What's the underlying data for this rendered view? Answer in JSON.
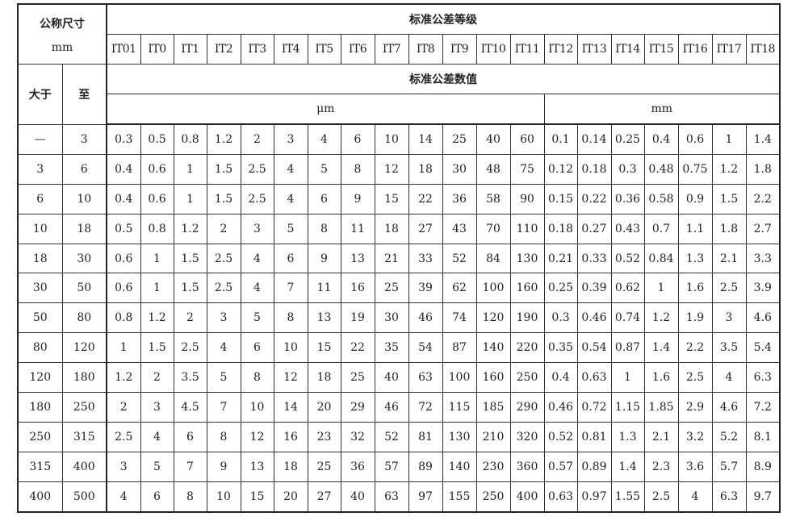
{
  "header": {
    "nominal_size": "公称尺寸",
    "nominal_unit": "mm",
    "grade_title": "标准公差等级",
    "over": "大于",
    "up_to": "至",
    "values_title": "标准公差数值",
    "unit_um": "μm",
    "unit_mm": "mm",
    "grades": [
      "IT01",
      "IT0",
      "IT1",
      "IT2",
      "IT3",
      "IT4",
      "IT5",
      "IT6",
      "IT7",
      "IT8",
      "IT9",
      "IT10",
      "IT11",
      "IT12",
      "IT13",
      "IT14",
      "IT15",
      "IT16",
      "IT17",
      "IT18"
    ]
  },
  "rows": [
    {
      "over": "—",
      "to": "3",
      "values": [
        "0.3",
        "0.5",
        "0.8",
        "1.2",
        "2",
        "3",
        "4",
        "6",
        "10",
        "14",
        "25",
        "40",
        "60",
        "0.1",
        "0.14",
        "0.25",
        "0.4",
        "0.6",
        "1",
        "1.4"
      ]
    },
    {
      "over": "3",
      "to": "6",
      "values": [
        "0.4",
        "0.6",
        "1",
        "1.5",
        "2.5",
        "4",
        "5",
        "8",
        "12",
        "18",
        "30",
        "48",
        "75",
        "0.12",
        "0.18",
        "0.3",
        "0.48",
        "0.75",
        "1.2",
        "1.8"
      ]
    },
    {
      "over": "6",
      "to": "10",
      "values": [
        "0.4",
        "0.6",
        "1",
        "1.5",
        "2.5",
        "4",
        "6",
        "9",
        "15",
        "22",
        "36",
        "58",
        "90",
        "0.15",
        "0.22",
        "0.36",
        "0.58",
        "0.9",
        "1.5",
        "2.2"
      ]
    },
    {
      "over": "10",
      "to": "18",
      "values": [
        "0.5",
        "0.8",
        "1.2",
        "2",
        "3",
        "5",
        "8",
        "11",
        "18",
        "27",
        "43",
        "70",
        "110",
        "0.18",
        "0.27",
        "0.43",
        "0.7",
        "1.1",
        "1.8",
        "2.7"
      ]
    },
    {
      "over": "18",
      "to": "30",
      "values": [
        "0.6",
        "1",
        "1.5",
        "2.5",
        "4",
        "6",
        "9",
        "13",
        "21",
        "33",
        "52",
        "84",
        "130",
        "0.21",
        "0.33",
        "0.52",
        "0.84",
        "1.3",
        "2.1",
        "3.3"
      ]
    },
    {
      "over": "30",
      "to": "50",
      "values": [
        "0.6",
        "1",
        "1.5",
        "2.5",
        "4",
        "7",
        "11",
        "16",
        "25",
        "39",
        "62",
        "100",
        "160",
        "0.25",
        "0.39",
        "0.62",
        "1",
        "1.6",
        "2.5",
        "3.9"
      ]
    },
    {
      "over": "50",
      "to": "80",
      "values": [
        "0.8",
        "1.2",
        "2",
        "3",
        "5",
        "8",
        "13",
        "19",
        "30",
        "46",
        "74",
        "120",
        "190",
        "0.3",
        "0.46",
        "0.74",
        "1.2",
        "1.9",
        "3",
        "4.6"
      ]
    },
    {
      "over": "80",
      "to": "120",
      "values": [
        "1",
        "1.5",
        "2.5",
        "4",
        "6",
        "10",
        "15",
        "22",
        "35",
        "54",
        "87",
        "140",
        "220",
        "0.35",
        "0.54",
        "0.87",
        "1.4",
        "2.2",
        "3.5",
        "5.4"
      ]
    },
    {
      "over": "120",
      "to": "180",
      "values": [
        "1.2",
        "2",
        "3.5",
        "5",
        "8",
        "12",
        "18",
        "25",
        "40",
        "63",
        "100",
        "160",
        "250",
        "0.4",
        "0.63",
        "1",
        "1.6",
        "2.5",
        "4",
        "6.3"
      ]
    },
    {
      "over": "180",
      "to": "250",
      "values": [
        "2",
        "3",
        "4.5",
        "7",
        "10",
        "14",
        "20",
        "29",
        "46",
        "72",
        "115",
        "185",
        "290",
        "0.46",
        "0.72",
        "1.15",
        "1.85",
        "2.9",
        "4.6",
        "7.2"
      ]
    },
    {
      "over": "250",
      "to": "315",
      "values": [
        "2.5",
        "4",
        "6",
        "8",
        "12",
        "16",
        "23",
        "32",
        "52",
        "81",
        "130",
        "210",
        "320",
        "0.52",
        "0.81",
        "1.3",
        "2.1",
        "3.2",
        "5.2",
        "8.1"
      ]
    },
    {
      "over": "315",
      "to": "400",
      "values": [
        "3",
        "5",
        "7",
        "9",
        "13",
        "18",
        "25",
        "36",
        "57",
        "89",
        "140",
        "230",
        "360",
        "0.57",
        "0.89",
        "1.4",
        "2.3",
        "3.6",
        "5.7",
        "8.9"
      ]
    },
    {
      "over": "400",
      "to": "500",
      "values": [
        "4",
        "6",
        "8",
        "10",
        "15",
        "20",
        "27",
        "40",
        "63",
        "97",
        "155",
        "250",
        "400",
        "0.63",
        "0.97",
        "1.55",
        "2.5",
        "4",
        "6.3",
        "9.7"
      ]
    }
  ]
}
